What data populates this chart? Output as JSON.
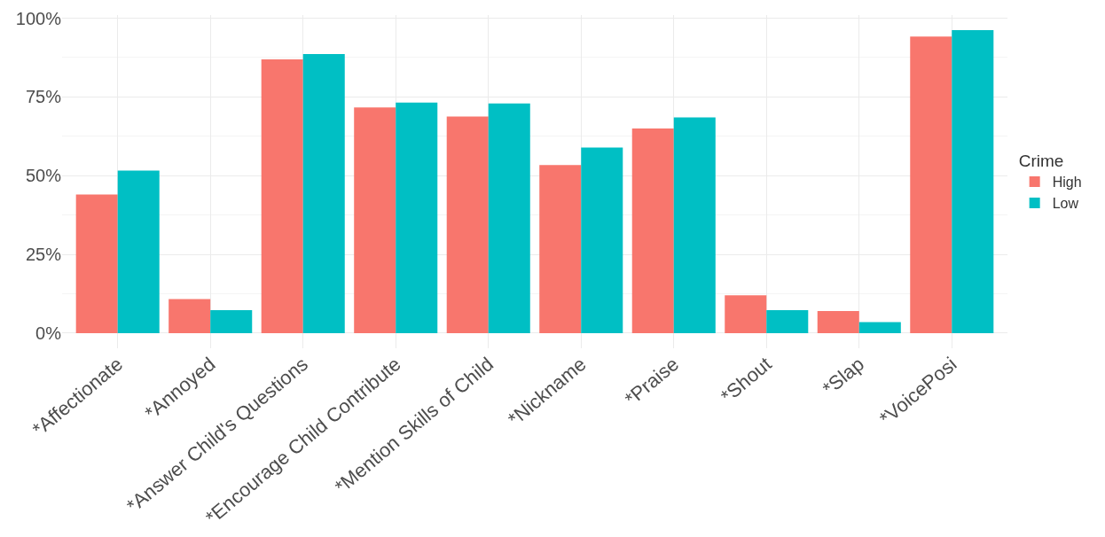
{
  "chart_data": {
    "type": "bar",
    "categories": [
      "*Affectionate",
      "*Annoyed",
      "*Answer Child's Questions",
      "*Encourage Child Contribute",
      "*Mention Skills of Child",
      "*Nickname",
      "*Praise",
      "*Shout",
      "*Slap",
      "*VoicePosi"
    ],
    "series": [
      {
        "name": "High",
        "color": "#f8766d",
        "values": [
          44.0,
          10.8,
          86.9,
          71.7,
          68.8,
          53.4,
          65.0,
          12.0,
          7.0,
          94.2
        ]
      },
      {
        "name": "Low",
        "color": "#00bfc4",
        "values": [
          51.6,
          7.3,
          88.6,
          73.2,
          72.9,
          58.9,
          68.5,
          7.3,
          3.5,
          96.2
        ]
      }
    ],
    "legend_title": "Crime",
    "legend": "right",
    "grid": true,
    "ylim": [
      -4.8,
      101
    ],
    "yticks": [
      {
        "value": 0,
        "label": "0%"
      },
      {
        "value": 25,
        "label": "25%"
      },
      {
        "value": 50,
        "label": "50%"
      },
      {
        "value": 75,
        "label": "75%"
      },
      {
        "value": 100,
        "label": "100%"
      }
    ]
  }
}
